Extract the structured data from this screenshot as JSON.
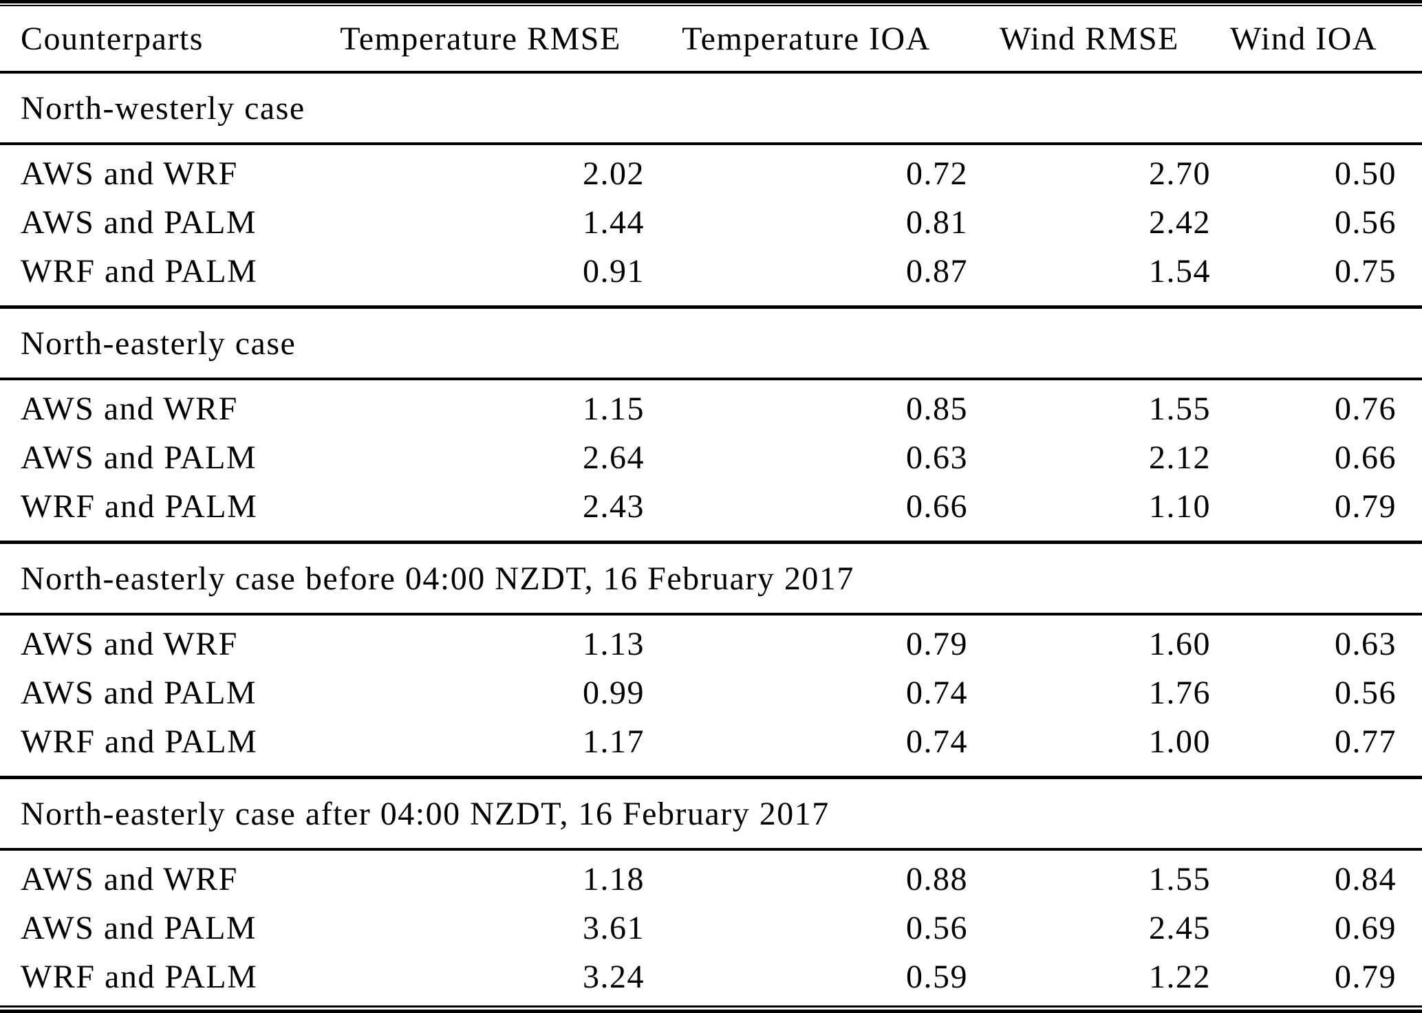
{
  "table": {
    "columns": [
      "Counterparts",
      "Temperature RMSE",
      "Temperature IOA",
      "Wind RMSE",
      "Wind IOA"
    ],
    "sections": [
      {
        "title": "North-westerly case",
        "rows": [
          {
            "counterparts": "AWS and WRF",
            "values": [
              "2.02",
              "0.72",
              "2.70",
              "0.50"
            ]
          },
          {
            "counterparts": "AWS and PALM",
            "values": [
              "1.44",
              "0.81",
              "2.42",
              "0.56"
            ]
          },
          {
            "counterparts": "WRF and PALM",
            "values": [
              "0.91",
              "0.87",
              "1.54",
              "0.75"
            ]
          }
        ]
      },
      {
        "title": "North-easterly case",
        "rows": [
          {
            "counterparts": "AWS and WRF",
            "values": [
              "1.15",
              "0.85",
              "1.55",
              "0.76"
            ]
          },
          {
            "counterparts": "AWS and PALM",
            "values": [
              "2.64",
              "0.63",
              "2.12",
              "0.66"
            ]
          },
          {
            "counterparts": "WRF and PALM",
            "values": [
              "2.43",
              "0.66",
              "1.10",
              "0.79"
            ]
          }
        ]
      },
      {
        "title": "North-easterly case before 04:00 NZDT, 16 February 2017",
        "rows": [
          {
            "counterparts": "AWS and WRF",
            "values": [
              "1.13",
              "0.79",
              "1.60",
              "0.63"
            ]
          },
          {
            "counterparts": "AWS and PALM",
            "values": [
              "0.99",
              "0.74",
              "1.76",
              "0.56"
            ]
          },
          {
            "counterparts": "WRF and PALM",
            "values": [
              "1.17",
              "0.74",
              "1.00",
              "0.77"
            ]
          }
        ]
      },
      {
        "title": "North-easterly case after 04:00 NZDT, 16 February 2017",
        "rows": [
          {
            "counterparts": "AWS and WRF",
            "values": [
              "1.18",
              "0.88",
              "1.55",
              "0.84"
            ]
          },
          {
            "counterparts": "AWS and PALM",
            "values": [
              "3.61",
              "0.56",
              "2.45",
              "0.69"
            ]
          },
          {
            "counterparts": "WRF and PALM",
            "values": [
              "3.24",
              "0.59",
              "1.22",
              "0.79"
            ]
          }
        ]
      }
    ]
  },
  "colors": {
    "text": "#000000",
    "background": "#ffffff",
    "rule": "#000000"
  }
}
